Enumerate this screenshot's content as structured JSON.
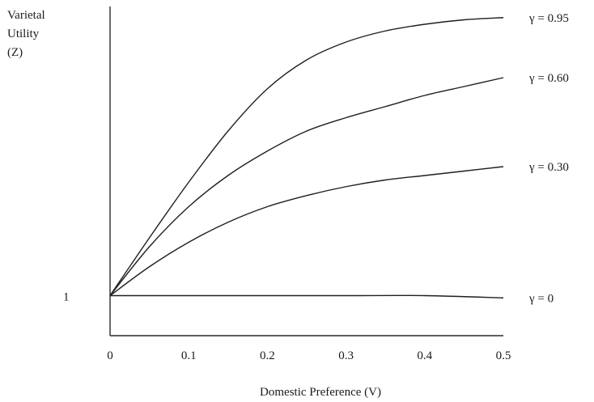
{
  "chart_data": {
    "type": "line",
    "title": "",
    "ylabel_lines": [
      "Varietal",
      "Utility",
      "(Z)"
    ],
    "xlabel": "Domestic Preference (V)",
    "x_ticks": [
      0,
      0.1,
      0.2,
      0.3,
      0.4,
      0.5
    ],
    "x_tick_labels": [
      "0",
      "0.1",
      "0.2",
      "0.3",
      "0.4",
      "0.5"
    ],
    "y_ticks": [
      1
    ],
    "y_tick_labels": [
      "1"
    ],
    "xlim": [
      0,
      0.5
    ],
    "ylim": [
      0.82,
      2.3
    ],
    "grid": false,
    "series": [
      {
        "name": "γ = 0.95",
        "x": [
          0,
          0.05,
          0.1,
          0.15,
          0.2,
          0.25,
          0.3,
          0.35,
          0.4,
          0.45,
          0.5
        ],
        "y": [
          1.0,
          1.26,
          1.51,
          1.74,
          1.93,
          2.06,
          2.14,
          2.19,
          2.22,
          2.24,
          2.25
        ]
      },
      {
        "name": "γ = 0.60",
        "x": [
          0,
          0.05,
          0.1,
          0.15,
          0.2,
          0.25,
          0.3,
          0.35,
          0.4,
          0.45,
          0.5
        ],
        "y": [
          1.0,
          1.22,
          1.4,
          1.54,
          1.65,
          1.74,
          1.8,
          1.85,
          1.9,
          1.94,
          1.98
        ]
      },
      {
        "name": "γ = 0.30",
        "x": [
          0,
          0.05,
          0.1,
          0.15,
          0.2,
          0.25,
          0.3,
          0.35,
          0.4,
          0.45,
          0.5
        ],
        "y": [
          1.0,
          1.13,
          1.24,
          1.33,
          1.4,
          1.45,
          1.49,
          1.52,
          1.54,
          1.56,
          1.58
        ]
      },
      {
        "name": "γ = 0",
        "x": [
          0,
          0.1,
          0.2,
          0.3,
          0.4,
          0.5
        ],
        "y": [
          1.0,
          1.0,
          1.0,
          1.0,
          1.0,
          0.99
        ]
      }
    ]
  }
}
